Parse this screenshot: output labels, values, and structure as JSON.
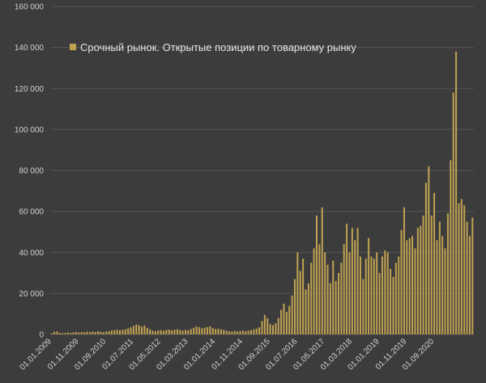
{
  "chart_data": {
    "type": "bar",
    "title": "",
    "xlabel": "",
    "ylabel": "",
    "ylim": [
      0,
      160000
    ],
    "yticks": [
      0,
      20000,
      40000,
      60000,
      80000,
      100000,
      120000,
      140000,
      160000
    ],
    "ytick_labels": [
      "0",
      "20 000",
      "40 000",
      "60 000",
      "80 000",
      "100 000",
      "120 000",
      "140 000",
      "160 000"
    ],
    "xtick_labels": [
      "01.01.2009",
      "01.11.2009",
      "01.09.2010",
      "01.07.2011",
      "01.05.2012",
      "01.03.2013",
      "01.01.2014",
      "01.11.2014",
      "01.09.2015",
      "01.07.2016",
      "01.05.2017",
      "01.03.2018",
      "01.01.2019",
      "01.11.2019",
      "01.09.2020"
    ],
    "grid": true,
    "legend_position": "top-left",
    "bar_color": "#bfa152",
    "grid_color": "#555555",
    "series": [
      {
        "name": "Срочный рынок. Открытые позиции по товарному рынку",
        "x_start": "01.01.2009",
        "x_step": "1 month",
        "values": [
          500,
          1200,
          1500,
          800,
          600,
          700,
          900,
          800,
          1000,
          1200,
          900,
          1100,
          1000,
          1300,
          1100,
          1400,
          1200,
          1500,
          1300,
          1100,
          1400,
          1600,
          1900,
          2100,
          2300,
          2000,
          2200,
          2500,
          3000,
          3500,
          4200,
          4800,
          4500,
          3800,
          4300,
          3200,
          2500,
          1800,
          1600,
          1900,
          2100,
          1800,
          2200,
          2400,
          2000,
          2300,
          2500,
          2100,
          1900,
          2200,
          2000,
          2600,
          3200,
          3900,
          3500,
          3000,
          3300,
          3600,
          4000,
          3100,
          2700,
          2800,
          2500,
          2200,
          1800,
          1500,
          1400,
          1700,
          1500,
          1700,
          1800,
          1600,
          1800,
          2100,
          2500,
          2800,
          3500,
          6500,
          9500,
          8000,
          5000,
          4500,
          5500,
          8000,
          12000,
          15000,
          11000,
          14000,
          19000,
          27000,
          40000,
          31000,
          37000,
          22000,
          25000,
          35000,
          42000,
          58000,
          44000,
          62000,
          40000,
          34000,
          25000,
          36000,
          26000,
          30000,
          35000,
          44000,
          54000,
          40000,
          52000,
          46000,
          52000,
          38000,
          27000,
          37000,
          47000,
          38000,
          37000,
          40000,
          30000,
          38000,
          41000,
          40000,
          32000,
          28000,
          35000,
          38000,
          51000,
          62000,
          46000,
          47000,
          48000,
          42000,
          52000,
          53000,
          58000,
          74000,
          82000,
          58000,
          69000,
          46000,
          55000,
          48000,
          42000,
          59000,
          85000,
          118000,
          138000,
          64000,
          66000,
          63000,
          55000,
          48000,
          57000
        ]
      }
    ]
  }
}
